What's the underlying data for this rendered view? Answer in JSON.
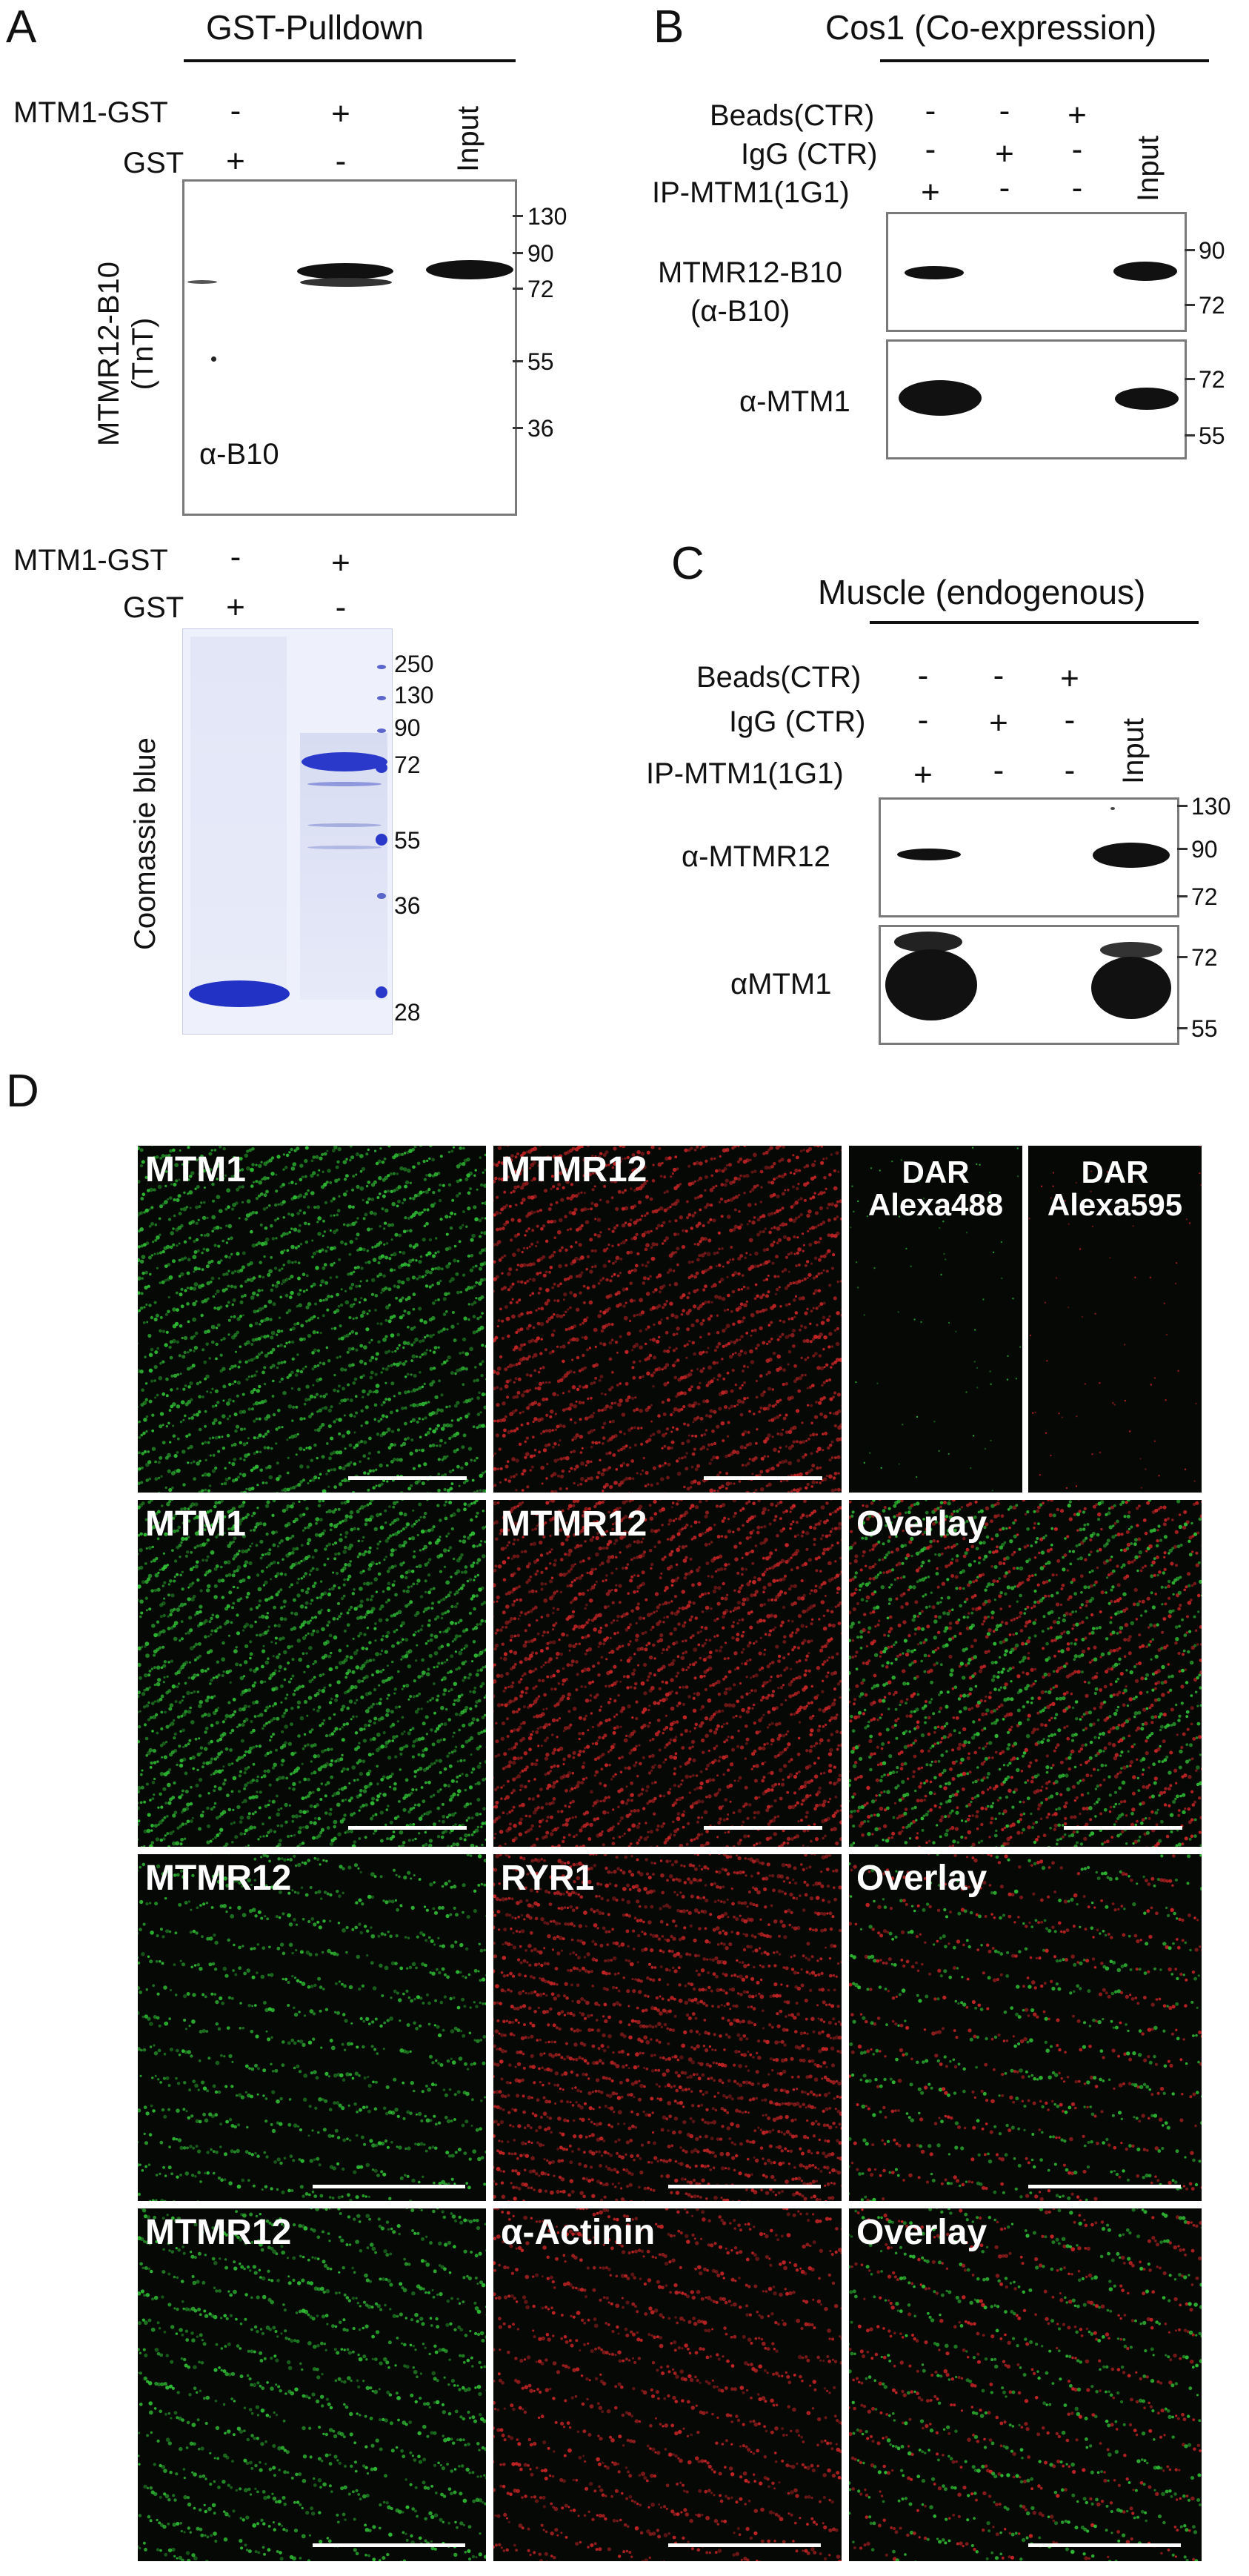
{
  "panels": {
    "A": {
      "letter": "A",
      "title": "GST-Pulldown",
      "row1_label": "MTM1-GST",
      "row2_label": "GST",
      "lane_signs_row1": [
        "-",
        "+"
      ],
      "lane_signs_row2": [
        "+",
        "-"
      ],
      "input_label": "Input",
      "blot_ylabel": "MTMR12-B10\n(TnT)",
      "blot_ylabel_line1": "MTMR12-B10",
      "blot_ylabel_line2": "(TnT)",
      "blot_antibody": "α-B10",
      "mw_markers": [
        "130",
        "90",
        "72",
        "55",
        "36"
      ],
      "gel_row1_label": "MTM1-GST",
      "gel_row2_label": "GST",
      "gel_signs_row1": [
        "-",
        "+"
      ],
      "gel_signs_row2": [
        "+",
        "-"
      ],
      "gel_ylabel": "Coomassie blue",
      "gel_mw_markers": [
        "250",
        "130",
        "90",
        "72",
        "55",
        "36",
        "28"
      ]
    },
    "B": {
      "letter": "B",
      "title": "Cos1 (Co-expression)",
      "rows": [
        {
          "label": "Beads(CTR)",
          "signs": [
            "-",
            "-",
            "+"
          ]
        },
        {
          "label": "IgG (CTR)",
          "signs": [
            "-",
            "+",
            "-"
          ]
        },
        {
          "label": "IP-MTM1(1G1)",
          "signs": [
            "+",
            "-",
            "-"
          ]
        }
      ],
      "input_label": "Input",
      "blot1_label_line1": "MTMR12-B10",
      "blot1_label_line2": "(α-B10)",
      "blot1_mw": [
        "90",
        "72"
      ],
      "blot2_label": "α-MTM1",
      "blot2_mw": [
        "72",
        "55"
      ]
    },
    "C": {
      "letter": "C",
      "title": "Muscle (endogenous)",
      "rows": [
        {
          "label": "Beads(CTR)",
          "signs": [
            "-",
            "-",
            "+"
          ]
        },
        {
          "label": "IgG (CTR)",
          "signs": [
            "-",
            "+",
            "-"
          ]
        },
        {
          "label": "IP-MTM1(1G1)",
          "signs": [
            "+",
            "-",
            "-"
          ]
        }
      ],
      "input_label": "Input",
      "blot1_label": "α-MTMR12",
      "blot1_mw": [
        "130",
        "90",
        "72"
      ],
      "blot2_label": "αMTM1",
      "blot2_mw": [
        "72",
        "55"
      ]
    },
    "D": {
      "letter": "D",
      "rows": [
        [
          "MTM1",
          "MTMR12",
          "DAR\nAlexa488",
          "DAR\nAlexa595"
        ],
        [
          "MTM1",
          "MTMR12",
          "Overlay"
        ],
        [
          "MTMR12",
          "RYR1",
          "Overlay"
        ],
        [
          "MTMR12",
          "α-Actinin",
          "Overlay"
        ]
      ],
      "r1": {
        "c1": "MTM1",
        "c2": "MTMR12",
        "c3a": "DAR",
        "c3b": "Alexa488",
        "c4a": "DAR",
        "c4b": "Alexa595"
      },
      "r2": {
        "c1": "MTM1",
        "c2": "MTMR12",
        "c3": "Overlay"
      },
      "r3": {
        "c1": "MTMR12",
        "c2": "RYR1",
        "c3": "Overlay"
      },
      "r4": {
        "c1": "MTMR12",
        "c2": "α-Actinin",
        "c3": "Overlay"
      }
    }
  },
  "colors": {
    "green_channel": "#35d63a",
    "red_channel": "#e0282a",
    "overlay": "#9acb2c",
    "coomassie_blue": "#2a39c9",
    "frame": "#7a7a7a"
  }
}
